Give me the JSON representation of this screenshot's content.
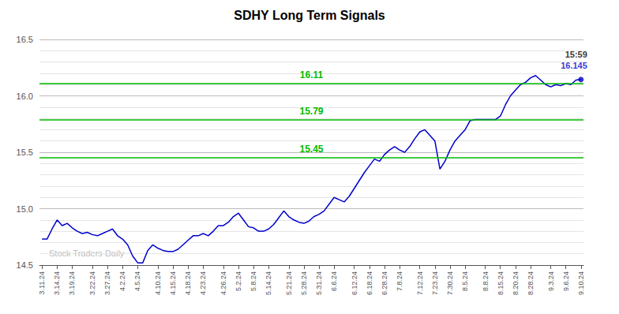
{
  "chart_data": {
    "type": "line",
    "title": "SDHY Long Term Signals",
    "categories": [
      "3.11.24",
      null,
      null,
      "3.14.24",
      null,
      null,
      "3.19.24",
      null,
      null,
      null,
      "3.22.24",
      null,
      null,
      "3.27.24",
      null,
      null,
      "4.2.24",
      null,
      null,
      "4.5.24",
      null,
      null,
      null,
      "4.10.24",
      null,
      null,
      "4.15.24",
      null,
      null,
      "4.18.24",
      null,
      null,
      "4.23.24",
      null,
      null,
      null,
      "4.26.24",
      null,
      null,
      "5.2.24",
      null,
      null,
      "5.8.24",
      null,
      null,
      "5.14.24",
      null,
      null,
      null,
      "5.21.24",
      null,
      null,
      "5.28.24",
      null,
      null,
      "5.31.24",
      null,
      null,
      "6.6.24",
      null,
      null,
      null,
      "6.12.24",
      null,
      null,
      "6.18.24",
      null,
      null,
      "6.28.24",
      null,
      null,
      "7.8.24",
      null,
      null,
      null,
      "7.12.24",
      null,
      null,
      "7.23.24",
      null,
      null,
      "7.30.24",
      null,
      null,
      "8.5.24",
      null,
      null,
      null,
      "8.8.24",
      null,
      null,
      "8.15.24",
      null,
      null,
      "8.20.24",
      null,
      null,
      "8.28.24",
      null,
      null,
      null,
      "9.3.24",
      null,
      null,
      "9.6.24",
      null,
      null,
      "9.10.24"
    ],
    "values": [
      14.73,
      14.73,
      14.82,
      14.9,
      14.85,
      14.87,
      14.83,
      14.8,
      14.78,
      14.79,
      14.77,
      14.76,
      14.78,
      14.8,
      14.82,
      14.76,
      14.73,
      14.68,
      14.58,
      14.52,
      14.52,
      14.63,
      14.68,
      14.65,
      14.63,
      14.62,
      14.62,
      14.64,
      14.68,
      14.72,
      14.76,
      14.76,
      14.78,
      14.76,
      14.8,
      14.85,
      14.85,
      14.88,
      14.93,
      14.96,
      14.9,
      14.84,
      14.83,
      14.8,
      14.8,
      14.82,
      14.86,
      14.92,
      14.98,
      14.93,
      14.9,
      14.88,
      14.87,
      14.89,
      14.93,
      14.95,
      14.98,
      15.04,
      15.1,
      15.08,
      15.06,
      15.11,
      15.18,
      15.25,
      15.32,
      15.38,
      15.44,
      15.42,
      15.48,
      15.52,
      15.55,
      15.52,
      15.5,
      15.55,
      15.62,
      15.68,
      15.7,
      15.65,
      15.6,
      15.35,
      15.42,
      15.52,
      15.6,
      15.65,
      15.7,
      15.78,
      15.79,
      15.79,
      15.79,
      15.79,
      15.79,
      15.82,
      15.92,
      16.0,
      16.05,
      16.1,
      16.12,
      16.16,
      16.18,
      16.14,
      16.1,
      16.08,
      16.1,
      16.09,
      16.11,
      16.1,
      16.14,
      16.145
    ],
    "color": "#0000cc",
    "ylim": [
      14.5,
      16.5
    ],
    "yticks": [
      14.5,
      {
        "value": 15,
        "label": "15.0"
      },
      15.5,
      {
        "value": 16,
        "label": "16.0"
      },
      16.5
    ],
    "grid": true,
    "hlines": [
      {
        "y": 16.11,
        "label": "16.11",
        "color": "#00bb00"
      },
      {
        "y": 15.79,
        "label": "15.79",
        "color": "#00bb00"
      },
      {
        "y": 15.45,
        "label": "15.45",
        "color": "#00bb00"
      }
    ],
    "annotations": [
      {
        "text": "15:59",
        "color": "#000000"
      },
      {
        "text": "16.145",
        "color": "#0000cc"
      }
    ],
    "watermark": "Stock Traders Daily"
  }
}
